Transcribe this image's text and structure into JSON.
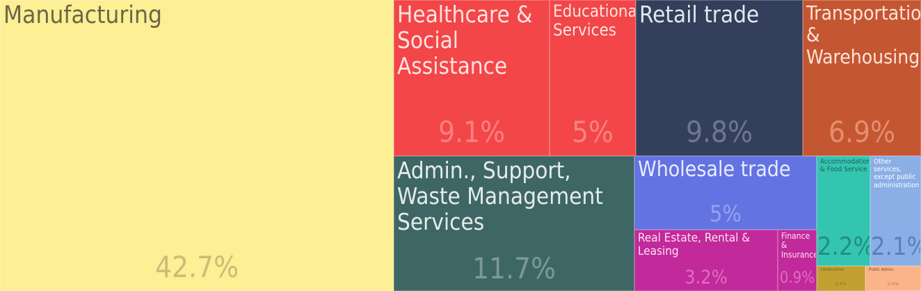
{
  "chart_data": {
    "type": "treemap",
    "title": "",
    "items": [
      {
        "label": "Manufacturing",
        "value": 42.7,
        "percent_label": "42.7%",
        "color": "#fcef94"
      },
      {
        "label": "Healthcare & Social Assistance",
        "value": 9.1,
        "percent_label": "9.1%",
        "color": "#f24649"
      },
      {
        "label": "Educational Services",
        "value": 5.0,
        "percent_label": "5%",
        "color": "#f24649"
      },
      {
        "label": "Admin., Support, Waste Management Services",
        "value": 11.7,
        "percent_label": "11.7%",
        "color": "#3e6665"
      },
      {
        "label": "Retail trade",
        "value": 9.8,
        "percent_label": "9.8%",
        "color": "#333f5b"
      },
      {
        "label": "Transportation & Warehousing",
        "value": 6.9,
        "percent_label": "6.9%",
        "color": "#c55632"
      },
      {
        "label": "Wholesale trade",
        "value": 5.0,
        "percent_label": "5%",
        "color": "#6373e1"
      },
      {
        "label": "Real Estate, Rental & Leasing",
        "value": 3.2,
        "percent_label": "3.2%",
        "color": "#c2299a"
      },
      {
        "label": "Finance & Insurance",
        "value": 0.9,
        "percent_label": "0.9%",
        "color": "#c2299a"
      },
      {
        "label": "Accommodation & Food Service",
        "value": 2.2,
        "percent_label": "2.2%",
        "color": "#34c5b1"
      },
      {
        "label": "Other services, except public administration",
        "value": 2.1,
        "percent_label": "2.1%",
        "color": "#8aaee6"
      },
      {
        "label": "Construction",
        "value": 0.4,
        "percent_label": "0.4%",
        "color": "#c2a132"
      },
      {
        "label": "Public Admin.",
        "value": 0.4,
        "percent_label": "0.4%",
        "color": "#fbb38a"
      }
    ]
  }
}
